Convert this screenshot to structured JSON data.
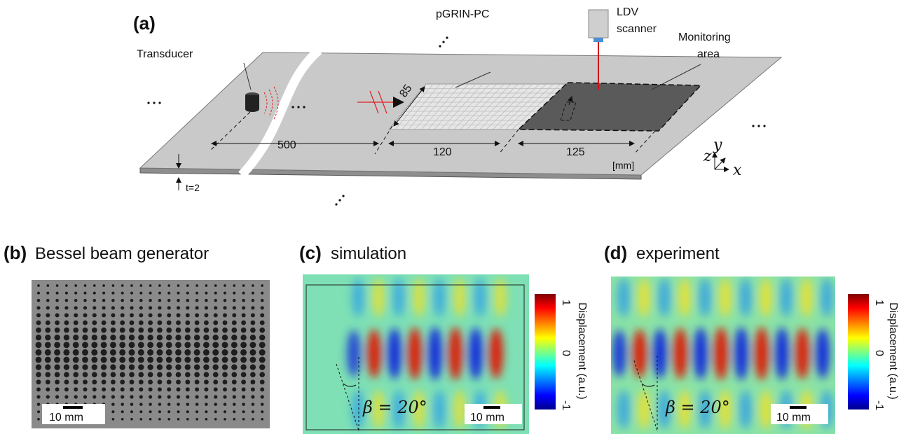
{
  "panel_a": {
    "label": "(a)",
    "pgrin": "pGRIN-PC",
    "ldv": [
      "LDV",
      "scanner"
    ],
    "monitoring": [
      "Monitoring",
      "area"
    ],
    "transducer": "Transducer",
    "width": 85,
    "distances": [
      500,
      120,
      125
    ],
    "unit": "[mm]",
    "thickness": "t=2",
    "axes": {
      "z": "z",
      "y": "y",
      "x": "x"
    }
  },
  "panel_b": {
    "label": "(b)",
    "title": "Bessel beam generator",
    "scale_bar": "10 mm"
  },
  "panel_c": {
    "label": "(c)",
    "title": "simulation",
    "angle": "β = 20°",
    "scale_bar": "10 mm",
    "colorbar": {
      "title": "Displacement (a.u.)",
      "ticks": [
        1,
        0,
        -1
      ]
    }
  },
  "panel_d": {
    "label": "(d)",
    "title": "experiment",
    "angle": "β = 20°",
    "scale_bar": "10 mm",
    "colorbar": {
      "title": "Displacement (a.u.)",
      "ticks": [
        1,
        0,
        -1
      ]
    }
  }
}
